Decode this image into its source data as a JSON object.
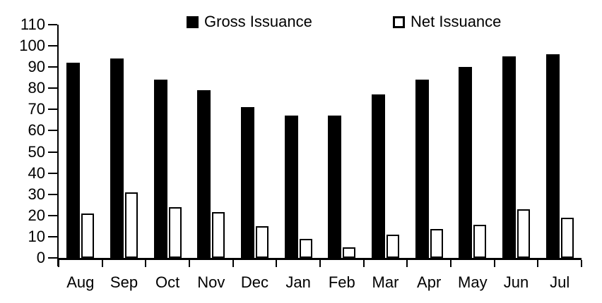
{
  "chart_data": {
    "type": "bar",
    "title": "",
    "xlabel": "",
    "ylabel": "",
    "categories": [
      "Aug",
      "Sep",
      "Oct",
      "Nov",
      "Dec",
      "Jan",
      "Feb",
      "Mar",
      "Apr",
      "May",
      "Jun",
      "Jul"
    ],
    "series": [
      {
        "name": "Gross Issuance",
        "values": [
          92,
          94,
          84,
          79,
          71,
          67,
          67,
          77,
          84,
          90,
          95,
          96
        ],
        "fill": "#000000"
      },
      {
        "name": "Net Issuance",
        "values": [
          21,
          31,
          24,
          21.5,
          15,
          9,
          5,
          11,
          13.5,
          15.5,
          23,
          19
        ],
        "fill": "#ffffff",
        "stroke": "#000000"
      }
    ],
    "ylim": [
      0,
      110
    ],
    "yticks": [
      0,
      10,
      20,
      30,
      40,
      50,
      60,
      70,
      80,
      90,
      100,
      110
    ],
    "grid": false,
    "legend_position": "top"
  },
  "colors": {
    "axis": "#000000",
    "text": "#000000",
    "background": "#ffffff"
  }
}
